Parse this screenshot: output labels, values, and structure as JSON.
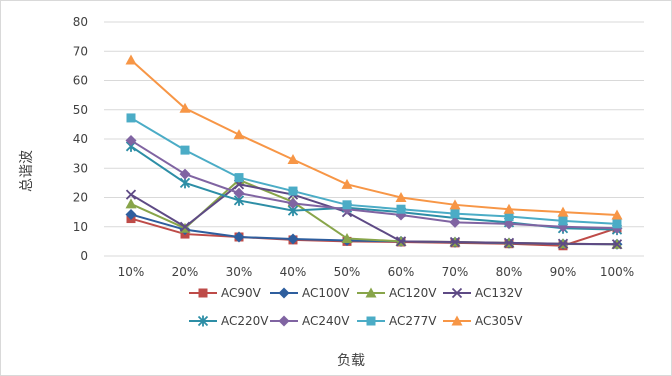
{
  "chart_data": {
    "type": "line",
    "title": "",
    "xlabel": "负载",
    "ylabel": "总谐波",
    "categories": [
      "10%",
      "20%",
      "30%",
      "40%",
      "50%",
      "60%",
      "70%",
      "80%",
      "90%",
      "100%"
    ],
    "ylim": [
      0,
      80
    ],
    "yticks": [
      "0",
      "10",
      "20",
      "30",
      "40",
      "50",
      "60",
      "70",
      "80"
    ],
    "grid": true,
    "legend_position": "bottom",
    "series": [
      {
        "name": "AC90V",
        "color": "#be4b48",
        "marker": "square",
        "values": [
          12.8,
          7.5,
          6.5,
          5.5,
          5.0,
          4.8,
          4.5,
          4.2,
          3.5,
          9.5
        ]
      },
      {
        "name": "AC100V",
        "color": "#2e5e9e",
        "marker": "diamond",
        "values": [
          14.2,
          9.0,
          6.5,
          5.8,
          5.3,
          5.0,
          4.7,
          4.4,
          4.1,
          4.0
        ]
      },
      {
        "name": "AC120V",
        "color": "#88a54a",
        "marker": "triangle",
        "values": [
          17.8,
          9.5,
          26.0,
          18.5,
          6.0,
          5.0,
          4.8,
          4.5,
          4.2,
          4.0
        ]
      },
      {
        "name": "AC132V",
        "color": "#5e4a85",
        "marker": "x",
        "values": [
          21.0,
          10.0,
          24.5,
          21.0,
          15.0,
          5.0,
          4.8,
          4.5,
          4.2,
          4.0
        ]
      },
      {
        "name": "AC220V",
        "color": "#2d8ea6",
        "marker": "star",
        "values": [
          37.5,
          25.0,
          19.0,
          15.5,
          16.5,
          15.0,
          13.0,
          11.5,
          9.5,
          9.0
        ]
      },
      {
        "name": "AC240V",
        "color": "#8064a2",
        "marker": "diamond",
        "values": [
          39.5,
          28.0,
          21.5,
          18.0,
          16.0,
          14.0,
          11.5,
          11.0,
          10.0,
          9.5
        ]
      },
      {
        "name": "AC277V",
        "color": "#4bacc6",
        "marker": "square",
        "values": [
          47.2,
          36.2,
          26.8,
          22.2,
          17.5,
          16.0,
          14.5,
          13.5,
          12.0,
          11.0
        ]
      },
      {
        "name": "AC305V",
        "color": "#f79646",
        "marker": "triangle",
        "values": [
          67.0,
          50.5,
          41.5,
          33.0,
          24.5,
          20.0,
          17.5,
          16.0,
          15.0,
          14.0
        ]
      }
    ]
  }
}
